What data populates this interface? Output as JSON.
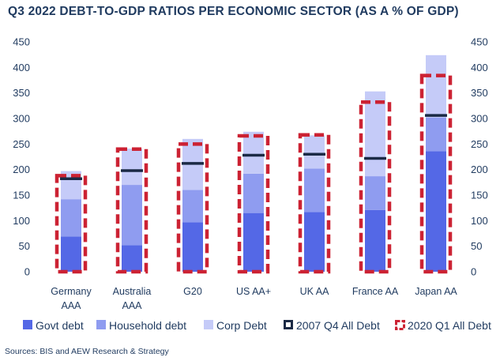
{
  "title": "Q3 2022 DEBT-TO-GDP RATIOS PER ECONOMIC SECTOR (AS A % OF GDP)",
  "source": "Sources: BIS and AEW Research & Strategy",
  "colors": {
    "govt": "#5468e6",
    "household": "#8f9cf0",
    "corp": "#c5cbf8",
    "marker2007": "#1b2a45",
    "marker2020": "#cc2233",
    "text": "#1f3a5f"
  },
  "chart_data": {
    "type": "bar",
    "stacked": true,
    "categories": [
      [
        "Germany",
        "AAA"
      ],
      [
        "Australia",
        "AAA"
      ],
      [
        "G20"
      ],
      [
        "US AA+"
      ],
      [
        "UK AA"
      ],
      [
        "France AA"
      ],
      [
        "Japan AA"
      ]
    ],
    "series": [
      {
        "name": "Govt debt",
        "values": [
          69,
          52,
          97,
          115,
          117,
          121,
          236
        ]
      },
      {
        "name": "Household debt",
        "values": [
          73,
          118,
          63,
          77,
          85,
          66,
          66
        ]
      },
      {
        "name": "Corp Debt",
        "values": [
          55,
          71,
          100,
          82,
          65,
          166,
          122
        ]
      }
    ],
    "markers": [
      {
        "name": "2007 Q4 All Debt",
        "values": [
          182,
          198,
          212,
          228,
          230,
          222,
          306
        ]
      },
      {
        "name": "2020 Q1 All Debt",
        "values": [
          188,
          240,
          250,
          266,
          268,
          332,
          384
        ]
      }
    ],
    "yticks": [
      0,
      50,
      100,
      150,
      200,
      250,
      300,
      350,
      400,
      450
    ],
    "ylim": [
      0,
      450
    ],
    "legend_position": "bottom",
    "grid": false
  },
  "legend": [
    {
      "label": "Govt debt",
      "kind": "swatch",
      "color_key": "govt"
    },
    {
      "label": "Household debt",
      "kind": "swatch",
      "color_key": "household"
    },
    {
      "label": "Corp Debt",
      "kind": "swatch",
      "color_key": "corp"
    },
    {
      "label": "2007 Q4 All Debt",
      "kind": "box",
      "color_key": "marker2007"
    },
    {
      "label": "2020 Q1 All Debt",
      "kind": "dashbox",
      "color_key": "marker2020"
    }
  ]
}
